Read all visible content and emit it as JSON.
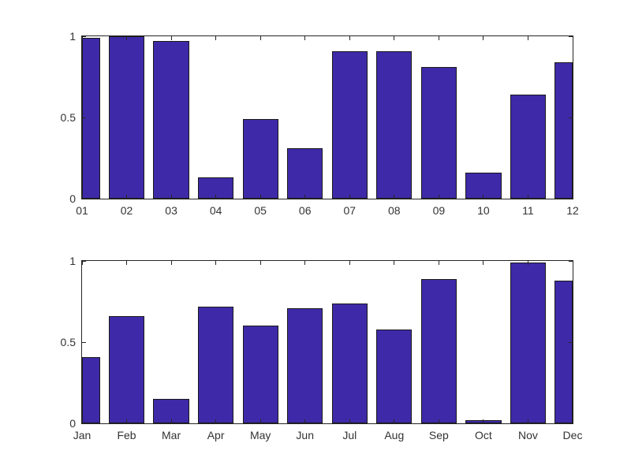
{
  "figure": {
    "background": "#ffffff"
  },
  "style": {
    "bar_fill": "#3E2AA8",
    "bar_edge": "#1a1a1a",
    "axis_color": "#262626",
    "tick_label_color": "#333333"
  },
  "chart_data": [
    {
      "type": "bar",
      "title": "",
      "xlabel": "",
      "ylabel": "",
      "categories": [
        "01",
        "02",
        "03",
        "04",
        "05",
        "06",
        "07",
        "08",
        "09",
        "10",
        "11",
        "12"
      ],
      "values": [
        0.99,
        1.0,
        0.97,
        0.13,
        0.49,
        0.31,
        0.91,
        0.91,
        0.81,
        0.16,
        0.64,
        0.84
      ],
      "ylim": [
        0,
        1
      ],
      "yticks": [
        0,
        0.5,
        1
      ],
      "ytick_labels": [
        "0",
        "0.5",
        "1"
      ],
      "grid": false,
      "legend": null,
      "layout_hint": "box axes, inward ticks on all sides, first and last bars clipped to half width at x-limits"
    },
    {
      "type": "bar",
      "title": "",
      "xlabel": "",
      "ylabel": "",
      "categories": [
        "Jan",
        "Feb",
        "Mar",
        "Apr",
        "May",
        "Jun",
        "Jul",
        "Aug",
        "Sep",
        "Oct",
        "Nov",
        "Dec"
      ],
      "values": [
        0.41,
        0.66,
        0.15,
        0.72,
        0.6,
        0.71,
        0.74,
        0.58,
        0.89,
        0.02,
        0.99,
        0.88
      ],
      "ylim": [
        0,
        1
      ],
      "yticks": [
        0,
        0.5,
        1
      ],
      "ytick_labels": [
        "0",
        "0.5",
        "1"
      ],
      "grid": false,
      "legend": null,
      "layout_hint": "box axes, inward ticks on all sides, first and last bars clipped to half width at x-limits"
    }
  ]
}
